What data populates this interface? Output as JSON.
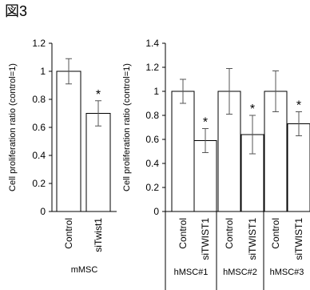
{
  "figure_label": "図3",
  "chart_data": [
    {
      "type": "bar",
      "ylabel": "Cell proliferation ratio (control=1)",
      "ylim": [
        0,
        1.2
      ],
      "yticks": [
        "0",
        "0.2",
        "0.4",
        "0.6",
        "0.8",
        "1",
        "1.2"
      ],
      "categories": [
        "Control",
        "siTwist1"
      ],
      "values": [
        1.0,
        0.7
      ],
      "errors": [
        0.09,
        0.09
      ],
      "significance": [
        "",
        "*"
      ],
      "groups": [
        {
          "label": "mMSC",
          "categories": [
            "Control",
            "siTwist1"
          ]
        }
      ]
    },
    {
      "type": "bar",
      "ylabel": "Cell proliferation ratio (control=1)",
      "ylim": [
        0,
        1.4
      ],
      "yticks": [
        "0",
        "0.2",
        "0.4",
        "0.6",
        "0.8",
        "1",
        "1.2",
        "1.4"
      ],
      "categories": [
        "Control",
        "siTWIST1",
        "Control",
        "siTWIST1",
        "Control",
        "siTWIST1"
      ],
      "values": [
        1.0,
        0.59,
        1.0,
        0.64,
        1.0,
        0.73
      ],
      "errors": [
        0.1,
        0.1,
        0.19,
        0.16,
        0.17,
        0.1
      ],
      "significance": [
        "",
        "*",
        "",
        "*",
        "",
        "*"
      ],
      "groups": [
        {
          "label": "hMSC#1",
          "categories": [
            "Control",
            "siTWIST1"
          ]
        },
        {
          "label": "hMSC#2",
          "categories": [
            "Control",
            "siTWIST1"
          ]
        },
        {
          "label": "hMSC#3",
          "categories": [
            "Control",
            "siTWIST1"
          ]
        }
      ]
    }
  ]
}
